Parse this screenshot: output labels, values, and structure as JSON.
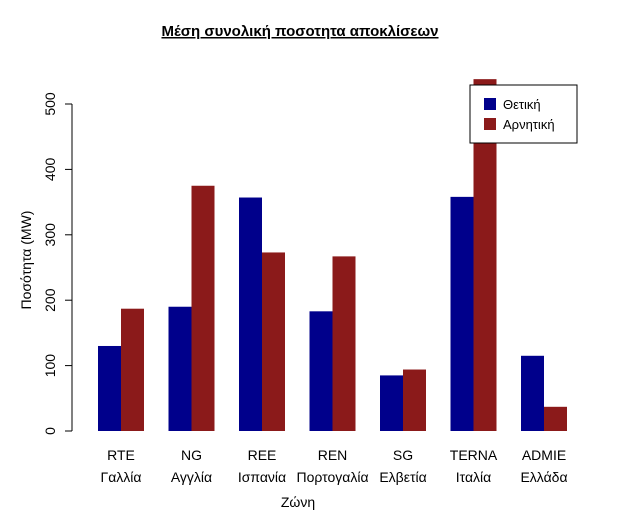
{
  "chart_data": {
    "type": "bar",
    "title": "Μέση συνολική ποσοτητα αποκλίσεων",
    "xlabel": "Ζώνη",
    "ylabel": "Ποσότητα (MW)",
    "categories": [
      {
        "code": "RTE",
        "country": "Γαλλία"
      },
      {
        "code": "NG",
        "country": "Αγγλία"
      },
      {
        "code": "REE",
        "country": "Ισπανία"
      },
      {
        "code": "REN",
        "country": "Πορτογαλία"
      },
      {
        "code": "SG",
        "country": "Ελβετία"
      },
      {
        "code": "TERNA",
        "country": "Ιταλία"
      },
      {
        "code": "ADMIE",
        "country": "Ελλάδα"
      }
    ],
    "series": [
      {
        "name": "Θετική",
        "color": "#00008B",
        "values": [
          130,
          190,
          357,
          183,
          85,
          358,
          115
        ]
      },
      {
        "name": "Αρνητική",
        "color": "#8B1A1A",
        "values": [
          187,
          375,
          273,
          267,
          94,
          538,
          37
        ]
      }
    ],
    "yticks": [
      0,
      100,
      200,
      300,
      400,
      500
    ],
    "ylim": [
      0,
      540
    ],
    "grid": false,
    "legend_position": "top-right"
  }
}
